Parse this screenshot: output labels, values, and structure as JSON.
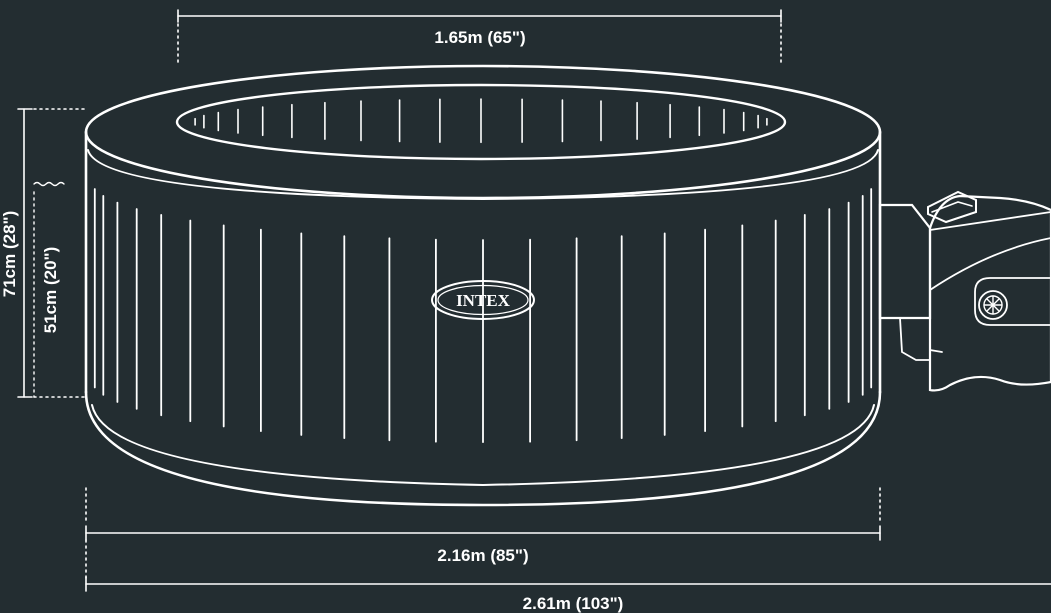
{
  "dimensions": {
    "inner_diameter": "1.65m (65\")",
    "outer_diameter": "2.16m (85\")",
    "total_width": "2.61m (103\")",
    "height": "71cm (28\")",
    "water_depth": "51cm (20\")"
  },
  "brand": "INTEX",
  "colors": {
    "background": "#232d31",
    "line": "#ffffff"
  }
}
